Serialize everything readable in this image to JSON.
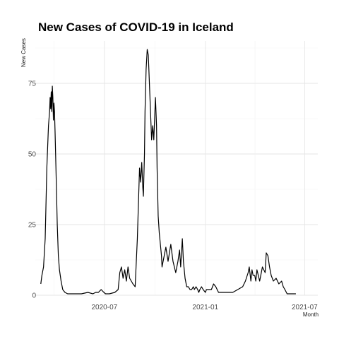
{
  "chart_data": {
    "type": "line",
    "title": "New Cases of COVID-19 in Iceland",
    "xlabel": "Month",
    "ylabel": "New Cases",
    "grid": true,
    "legend": "none",
    "xlim": [
      "2020-02-26",
      "2021-07-25"
    ],
    "ylim": [
      0,
      90
    ],
    "x_ticks": [
      {
        "date": "2020-07-01",
        "label": "2020-07"
      },
      {
        "date": "2021-01-01",
        "label": "2021-01"
      },
      {
        "date": "2021-07-01",
        "label": "2021-07"
      }
    ],
    "y_ticks": [
      0,
      25,
      50,
      75
    ],
    "series": [
      {
        "x": [
          "2020-03-07",
          "2020-03-09",
          "2020-03-12",
          "2020-03-15",
          "2020-03-18",
          "2020-03-21",
          "2020-03-23",
          "2020-03-24",
          "2020-03-25",
          "2020-03-26",
          "2020-03-27",
          "2020-03-28",
          "2020-03-29",
          "2020-03-30",
          "2020-03-31",
          "2020-04-01",
          "2020-04-02",
          "2020-04-04",
          "2020-04-06",
          "2020-04-08",
          "2020-04-10",
          "2020-04-13",
          "2020-04-16",
          "2020-04-20",
          "2020-04-25",
          "2020-05-01",
          "2020-05-10",
          "2020-05-20",
          "2020-06-01",
          "2020-06-10",
          "2020-06-15",
          "2020-06-20",
          "2020-06-25",
          "2020-06-30",
          "2020-07-03",
          "2020-07-10",
          "2020-07-20",
          "2020-07-26",
          "2020-07-29",
          "2020-08-01",
          "2020-08-04",
          "2020-08-07",
          "2020-08-10",
          "2020-08-13",
          "2020-08-16",
          "2020-08-19",
          "2020-08-22",
          "2020-08-26",
          "2020-08-30",
          "2020-09-03",
          "2020-09-05",
          "2020-09-07",
          "2020-09-09",
          "2020-09-10",
          "2020-09-12",
          "2020-09-13",
          "2020-09-15",
          "2020-09-17",
          "2020-09-19",
          "2020-09-21",
          "2020-09-23",
          "2020-09-25",
          "2020-09-27",
          "2020-09-29",
          "2020-10-02",
          "2020-10-04",
          "2020-10-05",
          "2020-10-07",
          "2020-10-09",
          "2020-10-11",
          "2020-10-13",
          "2020-10-14",
          "2020-10-16",
          "2020-10-18",
          "2020-10-21",
          "2020-10-25",
          "2020-10-30",
          "2020-11-03",
          "2020-11-08",
          "2020-11-12",
          "2020-11-15",
          "2020-11-17",
          "2020-11-20",
          "2020-11-22",
          "2020-11-25",
          "2020-11-28",
          "2020-12-01",
          "2020-12-04",
          "2020-12-07",
          "2020-12-10",
          "2020-12-12",
          "2020-12-15",
          "2020-12-18",
          "2020-12-20",
          "2020-12-22",
          "2020-12-25",
          "2020-12-28",
          "2021-01-01",
          "2021-01-03",
          "2021-01-05",
          "2021-01-08",
          "2021-01-12",
          "2021-01-16",
          "2021-01-20",
          "2021-01-25",
          "2021-02-01",
          "2021-02-10",
          "2021-02-20",
          "2021-03-01",
          "2021-03-10",
          "2021-03-15",
          "2021-03-20",
          "2021-03-22",
          "2021-03-25",
          "2021-03-27",
          "2021-03-29",
          "2021-04-01",
          "2021-04-03",
          "2021-04-05",
          "2021-04-10",
          "2021-04-15",
          "2021-04-20",
          "2021-04-22",
          "2021-04-25",
          "2021-04-28",
          "2021-05-01",
          "2021-05-05",
          "2021-05-10",
          "2021-05-15",
          "2021-05-20",
          "2021-05-23",
          "2021-05-26",
          "2021-05-30",
          "2021-06-05",
          "2021-06-10",
          "2021-06-15"
        ],
        "y": [
          4,
          7,
          10,
          20,
          45,
          60,
          65,
          70,
          66,
          72,
          65,
          74,
          70,
          62,
          68,
          65,
          58,
          42,
          25,
          14,
          9,
          5,
          2,
          1,
          0.5,
          0.5,
          0.5,
          0.5,
          1,
          0.5,
          1,
          1,
          2,
          1,
          0.5,
          0.5,
          1,
          2,
          8,
          10,
          6,
          9,
          5,
          10,
          6,
          5,
          4,
          3,
          20,
          45,
          40,
          47,
          38,
          35,
          50,
          65,
          80,
          87,
          85,
          75,
          65,
          55,
          60,
          55,
          70,
          60,
          45,
          28,
          22,
          18,
          14,
          10,
          12,
          14,
          17,
          12,
          18,
          12,
          8,
          12,
          16,
          10,
          20,
          12,
          6,
          3,
          3,
          2,
          2,
          3,
          2,
          3,
          2,
          1,
          2,
          3,
          2,
          1,
          2,
          2,
          2,
          2,
          4,
          3,
          1,
          1,
          1,
          1,
          2,
          3,
          5,
          8,
          10,
          5,
          9,
          7,
          7,
          5,
          9,
          5,
          10,
          8,
          15,
          14,
          10,
          7,
          5,
          6,
          4,
          5,
          3,
          2,
          0.5,
          0.5,
          0.5,
          0.5
        ]
      }
    ]
  }
}
